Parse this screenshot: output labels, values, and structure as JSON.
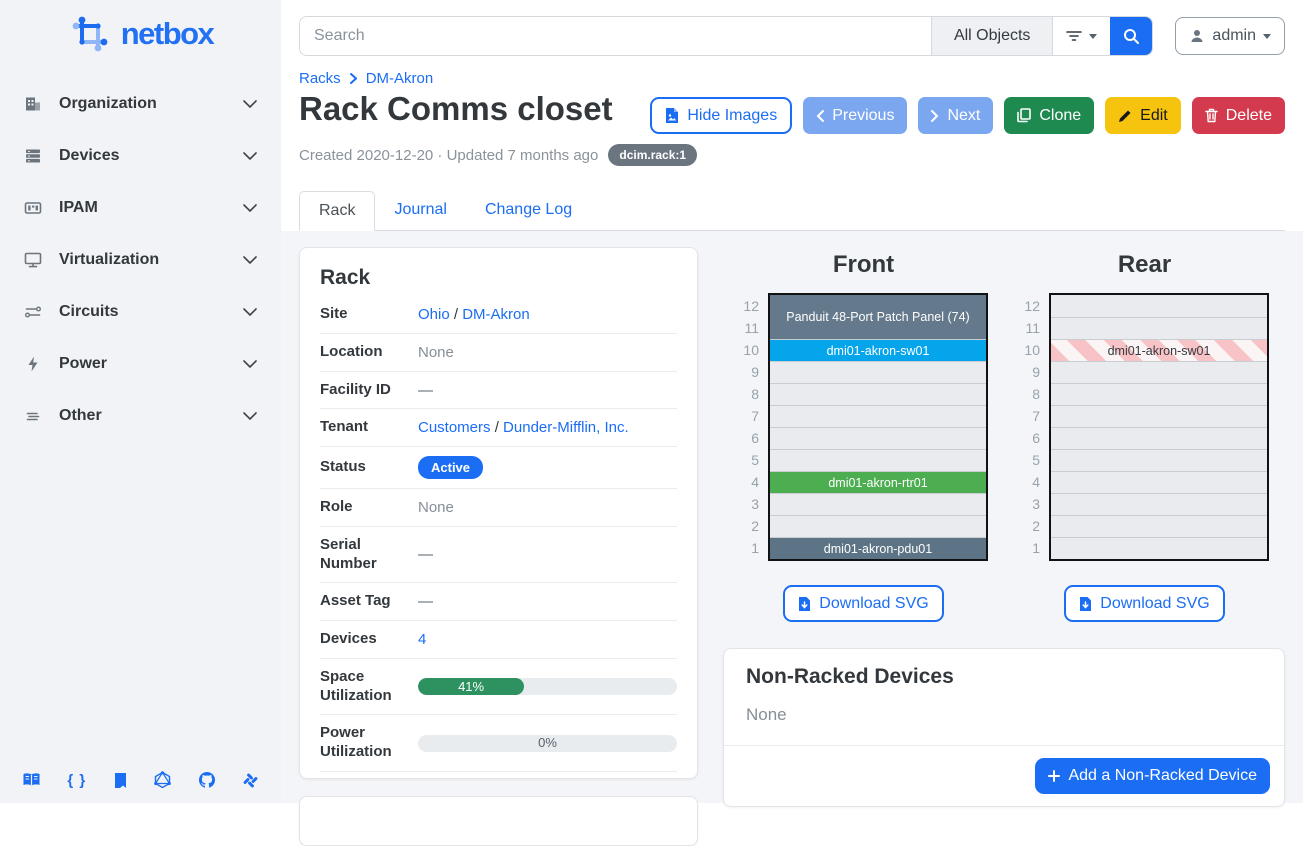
{
  "sidebar": {
    "logo_text": "netbox",
    "items": [
      {
        "label": "Organization"
      },
      {
        "label": "Devices"
      },
      {
        "label": "IPAM"
      },
      {
        "label": "Virtualization"
      },
      {
        "label": "Circuits"
      },
      {
        "label": "Power"
      },
      {
        "label": "Other"
      }
    ]
  },
  "topbar": {
    "search_placeholder": "Search",
    "scope_label": "All Objects",
    "user_label": "admin"
  },
  "breadcrumb": {
    "items": [
      "Racks",
      "DM-Akron"
    ]
  },
  "header": {
    "title": "Rack Comms closet",
    "meta": "Created 2020-12-20 · Updated 7 months ago",
    "object_badge": "dcim.rack:1",
    "hide_images_label": "Hide Images",
    "previous_label": "Previous",
    "next_label": "Next",
    "clone_label": "Clone",
    "edit_label": "Edit",
    "delete_label": "Delete"
  },
  "tabs": {
    "rack": "Rack",
    "journal": "Journal",
    "changelog": "Change Log"
  },
  "rack_panel": {
    "title": "Rack",
    "link_separator": "/",
    "labels": {
      "site": "Site",
      "location": "Location",
      "facility": "Facility ID",
      "tenant": "Tenant",
      "status": "Status",
      "role": "Role",
      "serial": "Serial Number",
      "asset": "Asset Tag",
      "devices": "Devices",
      "space": "Space Utilization",
      "power": "Power Utilization"
    },
    "values": {
      "site": [
        "Ohio",
        "DM-Akron"
      ],
      "location": "None",
      "facility": "—",
      "tenant": [
        "Customers",
        "Dunder-Mifflin, Inc."
      ],
      "status": "Active",
      "role": "None",
      "serial": "—",
      "asset": "—",
      "devices": "4",
      "space": {
        "percent": 41,
        "label": "41%"
      },
      "power": {
        "percent": 0,
        "label": "0%"
      }
    },
    "status_color": "#1b6ef3",
    "progress_fill_color": "#2d9160"
  },
  "elevations": {
    "units_top_to_bottom": [
      12,
      11,
      10,
      9,
      8,
      7,
      6,
      5,
      4,
      3,
      2,
      1
    ],
    "download_label": "Download SVG",
    "front": {
      "title": "Front",
      "slots": [
        {
          "u": 2,
          "device": true,
          "label": "Panduit 48-Port Patch Panel (74)",
          "color": "#64798b",
          "text_color": "#ffffff"
        },
        {
          "u": 1,
          "device": true,
          "label": "dmi01-akron-sw01",
          "color": "#05a5ec",
          "text_color": "#ffffff"
        },
        {
          "u": 1
        },
        {
          "u": 1
        },
        {
          "u": 1
        },
        {
          "u": 1
        },
        {
          "u": 1
        },
        {
          "u": 1,
          "device": true,
          "label": "dmi01-akron-rtr01",
          "color": "#4cae50",
          "text_color": "#ffffff"
        },
        {
          "u": 1
        },
        {
          "u": 1
        },
        {
          "u": 1,
          "device": true,
          "label": "dmi01-akron-pdu01",
          "color": "#5d7486",
          "text_color": "#ffffff"
        }
      ]
    },
    "rear": {
      "title": "Rear",
      "slots": [
        {
          "u": 1
        },
        {
          "u": 1
        },
        {
          "u": 1,
          "device": true,
          "label": "dmi01-akron-sw01",
          "hatched": true,
          "text_color": "#343a40"
        },
        {
          "u": 1
        },
        {
          "u": 1
        },
        {
          "u": 1
        },
        {
          "u": 1
        },
        {
          "u": 1
        },
        {
          "u": 1
        },
        {
          "u": 1
        },
        {
          "u": 1
        },
        {
          "u": 1
        }
      ]
    }
  },
  "non_racked": {
    "title": "Non-Racked Devices",
    "body": "None",
    "add_label": "Add a Non-Racked Device"
  }
}
